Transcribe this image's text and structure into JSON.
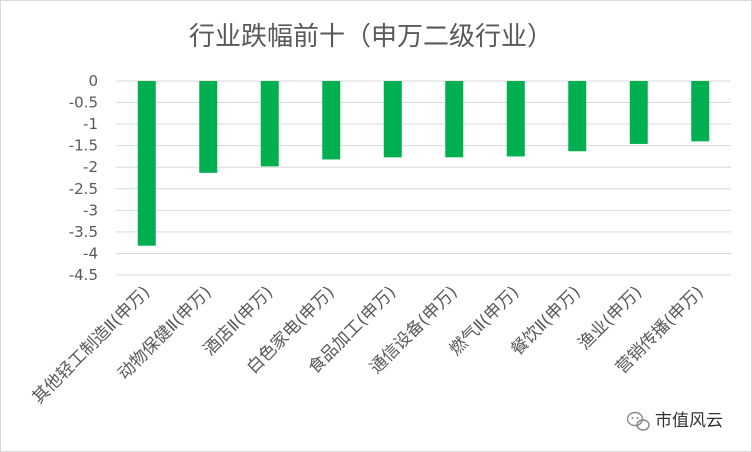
{
  "chart_data": {
    "type": "bar",
    "title": "行业跌幅前十（申万二级行业）",
    "categories": [
      "其他轻工制造Ⅱ(申万)",
      "动物保健Ⅱ(申万)",
      "酒店Ⅱ(申万)",
      "白色家电(申万)",
      "食品加工(申万)",
      "通信设备(申万)",
      "燃气Ⅱ(申万)",
      "餐饮Ⅱ(申万)",
      "渔业(申万)",
      "营销传播(申万)"
    ],
    "values": [
      -3.82,
      -2.13,
      -1.98,
      -1.82,
      -1.77,
      -1.77,
      -1.75,
      -1.63,
      -1.46,
      -1.4
    ],
    "ylim": [
      -4.5,
      0
    ],
    "yticks": [
      "0",
      "-0.5",
      "-1",
      "-1.5",
      "-2",
      "-2.5",
      "-3",
      "-3.5",
      "-4",
      "-4.5"
    ],
    "xlabel": "",
    "ylabel": "",
    "grid": true,
    "bar_color": "#00b050"
  },
  "watermark": {
    "icon": "wechat-icon",
    "text": "市值风云"
  }
}
